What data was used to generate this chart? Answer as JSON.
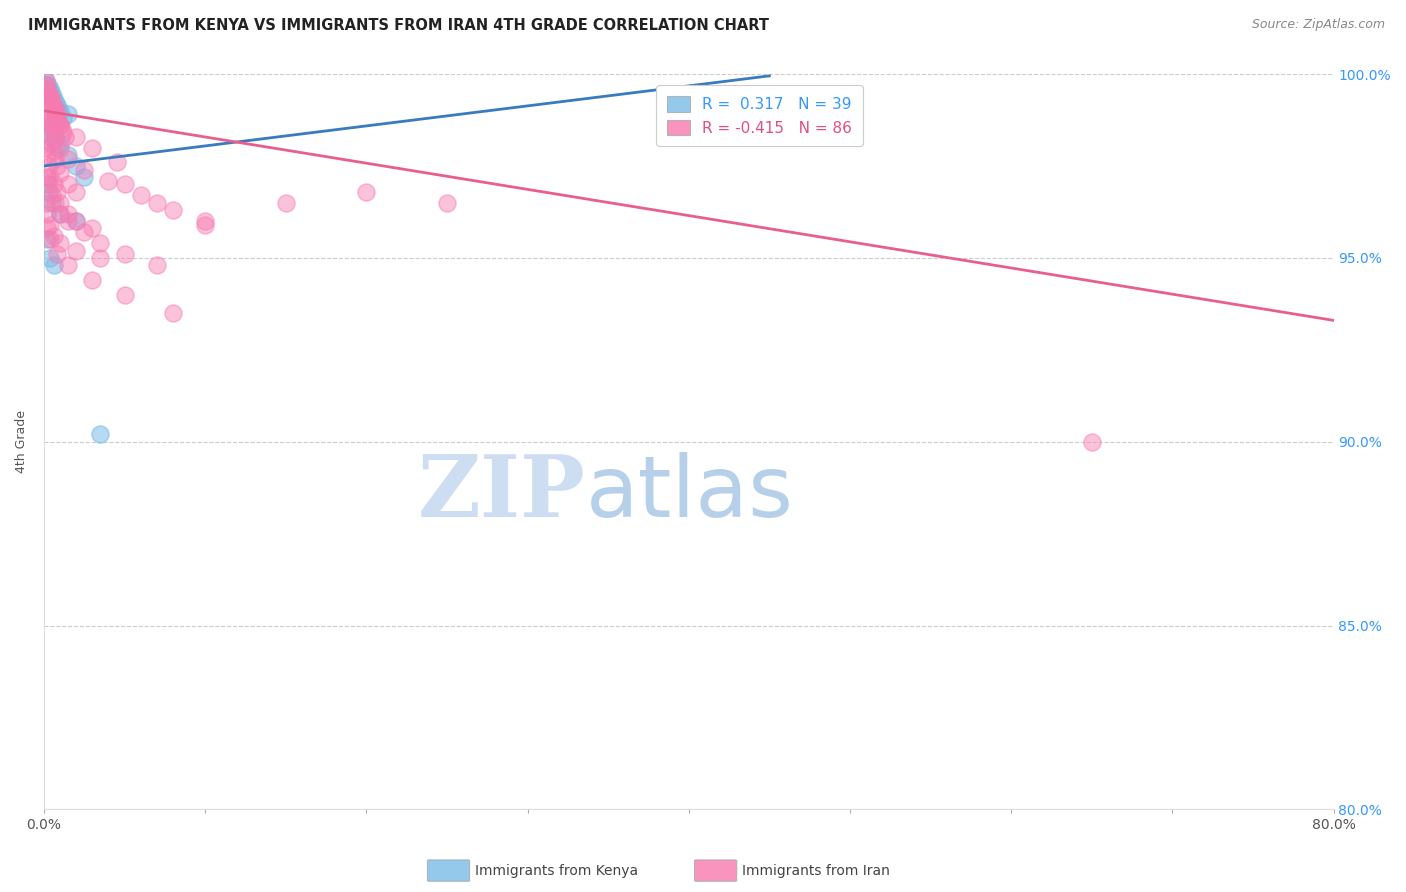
{
  "title": "IMMIGRANTS FROM KENYA VS IMMIGRANTS FROM IRAN 4TH GRADE CORRELATION CHART",
  "source": "Source: ZipAtlas.com",
  "ylabel": "4th Grade",
  "xlim": [
    0.0,
    80.0
  ],
  "ylim": [
    80.0,
    100.0
  ],
  "xticks": [
    0.0,
    10.0,
    20.0,
    30.0,
    40.0,
    50.0,
    60.0,
    70.0,
    80.0
  ],
  "yticks": [
    80.0,
    85.0,
    90.0,
    95.0,
    100.0
  ],
  "xtick_labels": [
    "0.0%",
    "",
    "",
    "",
    "",
    "",
    "",
    "",
    "80.0%"
  ],
  "ytick_labels_right": [
    "80.0%",
    "85.0%",
    "90.0%",
    "95.0%",
    "100.0%"
  ],
  "kenya_color": "#7bbce8",
  "iran_color": "#f87ab0",
  "kenya_R": 0.317,
  "kenya_N": 39,
  "iran_R": -0.415,
  "iran_N": 86,
  "kenya_line_color": "#3a7bbf",
  "iran_line_color": "#e8608a",
  "kenya_line_x0": 0.0,
  "kenya_line_y0": 97.5,
  "kenya_line_x1": 45.0,
  "kenya_line_y1": 99.95,
  "iran_line_x0": 0.0,
  "iran_line_y0": 99.0,
  "iran_line_x1": 80.0,
  "iran_line_y1": 93.3,
  "watermark_zip": "ZIP",
  "watermark_atlas": "atlas",
  "watermark_color_zip": "#c8d8f0",
  "watermark_color_atlas": "#a8c8e8",
  "legend_box_color": "#dddddd",
  "kenya_points": [
    [
      0.1,
      99.8
    ],
    [
      0.15,
      99.7
    ],
    [
      0.2,
      99.6
    ],
    [
      0.25,
      99.7
    ],
    [
      0.3,
      99.5
    ],
    [
      0.35,
      99.6
    ],
    [
      0.4,
      99.4
    ],
    [
      0.45,
      99.5
    ],
    [
      0.5,
      99.3
    ],
    [
      0.55,
      99.4
    ],
    [
      0.6,
      99.2
    ],
    [
      0.65,
      99.3
    ],
    [
      0.7,
      99.1
    ],
    [
      0.75,
      99.2
    ],
    [
      0.8,
      99.0
    ],
    [
      0.85,
      99.1
    ],
    [
      0.9,
      98.9
    ],
    [
      1.0,
      99.0
    ],
    [
      1.2,
      98.8
    ],
    [
      1.5,
      98.9
    ],
    [
      0.3,
      98.6
    ],
    [
      0.4,
      98.4
    ],
    [
      0.5,
      98.5
    ],
    [
      0.6,
      98.2
    ],
    [
      0.7,
      98.3
    ],
    [
      0.8,
      98.0
    ],
    [
      1.0,
      98.1
    ],
    [
      1.5,
      97.8
    ],
    [
      2.0,
      97.5
    ],
    [
      2.5,
      97.2
    ],
    [
      0.2,
      97.0
    ],
    [
      0.3,
      96.8
    ],
    [
      0.5,
      96.5
    ],
    [
      1.0,
      96.2
    ],
    [
      2.0,
      96.0
    ],
    [
      3.5,
      90.2
    ],
    [
      0.2,
      95.5
    ],
    [
      0.4,
      95.0
    ],
    [
      0.6,
      94.8
    ]
  ],
  "iran_points": [
    [
      0.1,
      99.8
    ],
    [
      0.15,
      99.7
    ],
    [
      0.2,
      99.6
    ],
    [
      0.25,
      99.5
    ],
    [
      0.3,
      99.4
    ],
    [
      0.35,
      99.3
    ],
    [
      0.4,
      99.4
    ],
    [
      0.45,
      99.2
    ],
    [
      0.5,
      99.3
    ],
    [
      0.55,
      99.1
    ],
    [
      0.6,
      99.0
    ],
    [
      0.65,
      99.1
    ],
    [
      0.7,
      98.9
    ],
    [
      0.75,
      98.8
    ],
    [
      0.8,
      99.0
    ],
    [
      0.9,
      98.7
    ],
    [
      1.0,
      98.6
    ],
    [
      1.1,
      98.5
    ],
    [
      1.2,
      98.4
    ],
    [
      1.3,
      98.3
    ],
    [
      0.2,
      98.7
    ],
    [
      0.3,
      98.5
    ],
    [
      0.4,
      98.3
    ],
    [
      0.5,
      98.1
    ],
    [
      0.6,
      97.9
    ],
    [
      0.7,
      97.7
    ],
    [
      0.8,
      97.5
    ],
    [
      1.0,
      97.3
    ],
    [
      1.5,
      97.0
    ],
    [
      2.0,
      96.8
    ],
    [
      0.1,
      98.0
    ],
    [
      0.2,
      97.8
    ],
    [
      0.3,
      97.5
    ],
    [
      0.4,
      97.2
    ],
    [
      0.6,
      97.0
    ],
    [
      0.8,
      96.8
    ],
    [
      1.0,
      96.5
    ],
    [
      1.5,
      96.2
    ],
    [
      2.0,
      96.0
    ],
    [
      3.0,
      95.8
    ],
    [
      0.2,
      97.2
    ],
    [
      0.3,
      97.0
    ],
    [
      0.5,
      96.7
    ],
    [
      0.7,
      96.5
    ],
    [
      1.0,
      96.2
    ],
    [
      1.5,
      96.0
    ],
    [
      2.5,
      95.7
    ],
    [
      3.5,
      95.4
    ],
    [
      5.0,
      95.1
    ],
    [
      7.0,
      94.8
    ],
    [
      0.1,
      96.5
    ],
    [
      0.2,
      96.2
    ],
    [
      0.4,
      95.9
    ],
    [
      0.6,
      95.6
    ],
    [
      1.0,
      95.4
    ],
    [
      2.0,
      95.2
    ],
    [
      3.5,
      95.0
    ],
    [
      5.0,
      97.0
    ],
    [
      7.0,
      96.5
    ],
    [
      10.0,
      96.0
    ],
    [
      0.3,
      98.8
    ],
    [
      0.5,
      98.6
    ],
    [
      0.7,
      98.3
    ],
    [
      1.0,
      98.0
    ],
    [
      1.5,
      97.7
    ],
    [
      2.5,
      97.4
    ],
    [
      4.0,
      97.1
    ],
    [
      6.0,
      96.7
    ],
    [
      8.0,
      96.3
    ],
    [
      10.0,
      95.9
    ],
    [
      0.5,
      98.9
    ],
    [
      1.0,
      98.6
    ],
    [
      2.0,
      98.3
    ],
    [
      3.0,
      98.0
    ],
    [
      4.5,
      97.6
    ],
    [
      0.2,
      95.8
    ],
    [
      0.4,
      95.5
    ],
    [
      0.8,
      95.1
    ],
    [
      1.5,
      94.8
    ],
    [
      3.0,
      94.4
    ],
    [
      5.0,
      94.0
    ],
    [
      8.0,
      93.5
    ],
    [
      65.0,
      90.0
    ],
    [
      15.0,
      96.5
    ],
    [
      20.0,
      96.8
    ],
    [
      25.0,
      96.5
    ]
  ]
}
